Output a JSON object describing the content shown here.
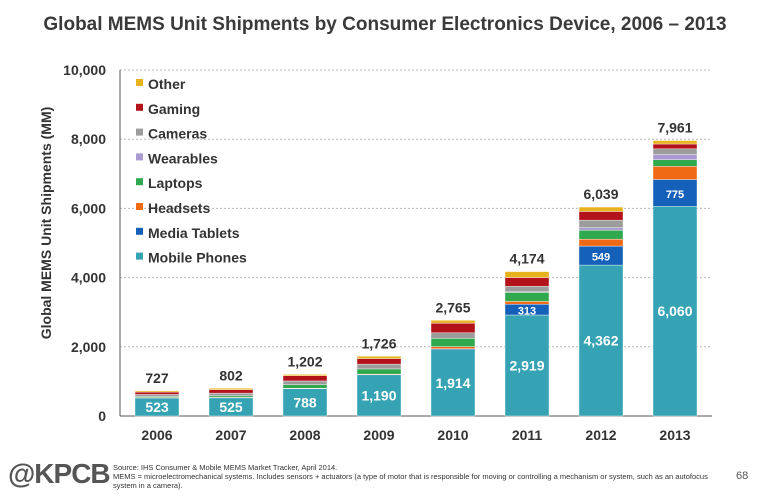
{
  "chart_data": {
    "type": "bar",
    "stacked": true,
    "title": "Global MEMS Unit Shipments by Consumer Electronics Device, 2006 – 2013",
    "xlabel": "",
    "ylabel": "Global MEMS Unit Shipments (MM)",
    "ylim": [
      0,
      10000
    ],
    "yticks": [
      0,
      2000,
      4000,
      6000,
      8000,
      10000
    ],
    "ytick_labels": [
      "0",
      "2,000",
      "4,000",
      "6,000",
      "8,000",
      "10,000"
    ],
    "grid": true,
    "legend_position": "top-left",
    "categories": [
      "2006",
      "2007",
      "2008",
      "2009",
      "2010",
      "2011",
      "2012",
      "2013"
    ],
    "totals": [
      727,
      802,
      1202,
      1726,
      2765,
      4174,
      6039,
      7961
    ],
    "total_labels": [
      "727",
      "802",
      "1,202",
      "1,726",
      "2,765",
      "4,174",
      "6,039",
      "7,961"
    ],
    "series": [
      {
        "name": "Mobile Phones",
        "color": "#35a3b3",
        "values": [
          523,
          525,
          788,
          1190,
          1914,
          2919,
          4362,
          6060
        ],
        "labels": [
          "523",
          "525",
          "788",
          "1,190",
          "1,914",
          "2,919",
          "4,362",
          "6,060"
        ]
      },
      {
        "name": "Media Tablets",
        "color": "#1560b8",
        "values": [
          0,
          0,
          0,
          0,
          30,
          313,
          549,
          775
        ],
        "labels": [
          "",
          "",
          "",
          "",
          "",
          "313",
          "549",
          "775"
        ]
      },
      {
        "name": "Headsets",
        "color": "#f06a15",
        "values": [
          10,
          12,
          15,
          20,
          60,
          80,
          200,
          380
        ],
        "labels": [
          "",
          "",
          "",
          "",
          "",
          "",
          "",
          ""
        ]
      },
      {
        "name": "Laptops",
        "color": "#30a84e",
        "values": [
          30,
          45,
          100,
          150,
          240,
          260,
          260,
          190
        ],
        "labels": [
          "",
          "",
          "",
          "",
          "",
          "",
          "",
          ""
        ]
      },
      {
        "name": "Wearables",
        "color": "#a99ad1",
        "values": [
          0,
          0,
          0,
          0,
          0,
          20,
          70,
          150
        ],
        "labels": [
          "",
          "",
          "",
          "",
          "",
          "",
          "",
          ""
        ]
      },
      {
        "name": "Cameras",
        "color": "#9c9c9c",
        "values": [
          60,
          80,
          110,
          140,
          160,
          160,
          220,
          166
        ],
        "labels": [
          "",
          "",
          "",
          "",
          "",
          "",
          "",
          ""
        ]
      },
      {
        "name": "Gaming",
        "color": "#b3121a",
        "values": [
          70,
          100,
          150,
          160,
          280,
          250,
          250,
          140
        ],
        "labels": [
          "",
          "",
          "",
          "",
          "",
          "",
          "",
          ""
        ]
      },
      {
        "name": "Other",
        "color": "#e8b21e",
        "values": [
          34,
          40,
          39,
          66,
          81,
          172,
          128,
          100
        ],
        "labels": [
          "",
          "",
          "",
          "",
          "",
          "",
          "",
          ""
        ]
      }
    ]
  },
  "footer": {
    "logo": "@KPCB",
    "source": "Source: IHS Consumer & Mobile MEMS Market Tracker, April 2014.",
    "note": "MEMS = microelectromechanical systems. Includes sensors + actuators (a type of motor that is responsible for moving or controlling a mechanism or system, such as an autofocus system in a camera).",
    "page_number": "68"
  }
}
